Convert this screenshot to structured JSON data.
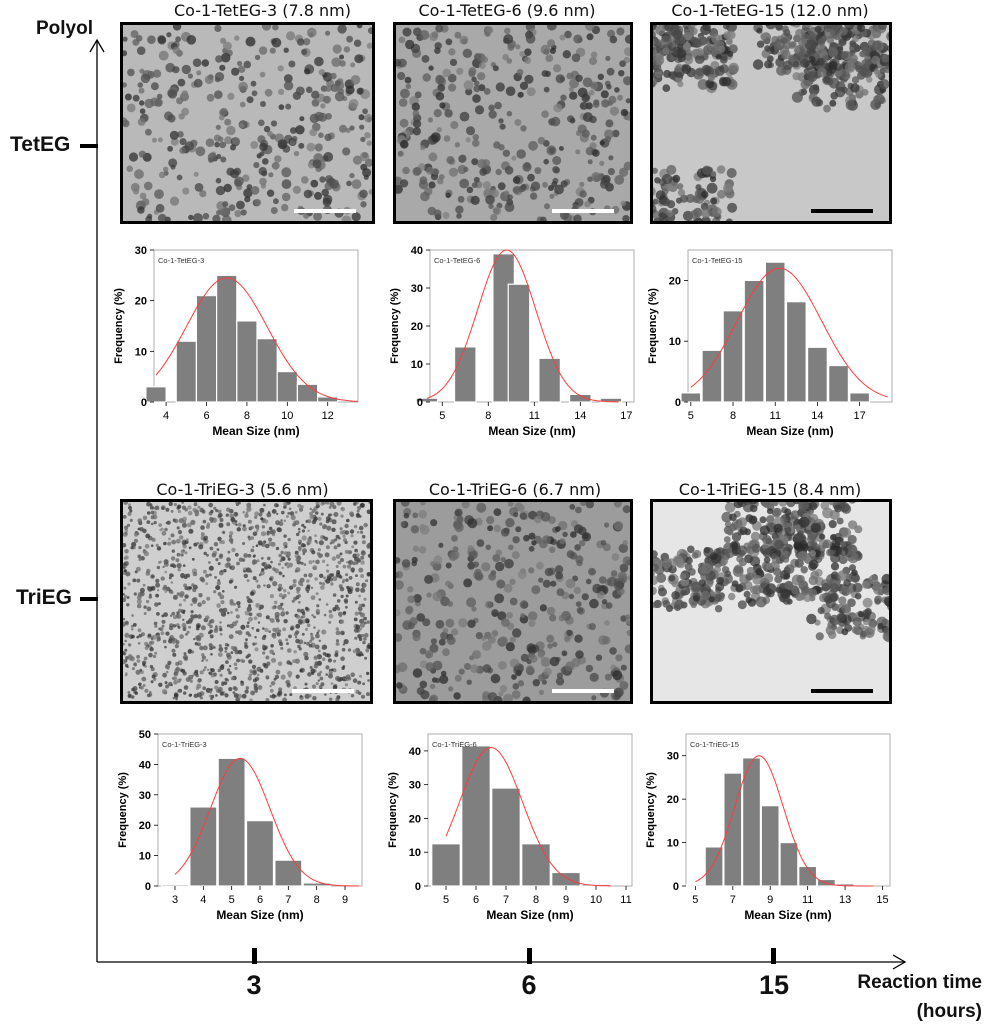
{
  "axes": {
    "y_label": "Polyol",
    "x_label_line1": "Reaction time",
    "x_label_line2": "(hours)",
    "rows": [
      "TetEG",
      "TriEG"
    ],
    "columns": [
      "3",
      "6",
      "15"
    ]
  },
  "captions": {
    "tet": [
      "Co-1-TetEG-3 (7.8 nm)",
      "Co-1-TetEG-6 (9.6 nm)",
      "Co-1-TetEG-15 (12.0 nm)"
    ],
    "tri": [
      "Co-1-TriEG-3 (5.6 nm)",
      "Co-1-TriEG-6 (6.7 nm)",
      "Co-1-TriEG-15 (8.4 nm)"
    ]
  },
  "tem_images": [
    {
      "style": "tet-3",
      "bg": "#b9b9b9",
      "density": "medium",
      "scalebar_color": "#ffffff"
    },
    {
      "style": "tet-6",
      "bg": "#a9a9a9",
      "density": "medium",
      "scalebar_color": "#ffffff"
    },
    {
      "style": "tet-15",
      "bg": "#c8c8c8",
      "density": "clustered",
      "scalebar_color": "#000000"
    },
    {
      "style": "tri-3",
      "bg": "#cfcfcf",
      "density": "dense",
      "scalebar_color": "#ffffff"
    },
    {
      "style": "tri-6",
      "bg": "#9c9c9c",
      "density": "medium",
      "scalebar_color": "#ffffff"
    },
    {
      "style": "tri-15",
      "bg": "#e6e6e6",
      "density": "clustered",
      "scalebar_color": "#000000"
    }
  ],
  "colors": {
    "bar": "#7f7f7f",
    "fit": "#ff3b3b",
    "frame": "#000000"
  },
  "chart_data": [
    {
      "type": "bar",
      "title": "Co-1-TetEG-3",
      "xlabel": "Mean Size (nm)",
      "ylabel": "Frequency (%)",
      "x": [
        3.5,
        5,
        6,
        7,
        8,
        9,
        10,
        11,
        12,
        13
      ],
      "values": [
        3,
        12,
        21,
        25,
        16,
        12.5,
        6,
        3.5,
        1,
        0
      ],
      "xlim": [
        3.4,
        13.5
      ],
      "ylim": [
        0,
        30
      ],
      "xticks": [
        "4",
        "6",
        "8",
        "10",
        "12"
      ],
      "xtick_values": [
        4,
        6,
        8,
        10,
        12
      ],
      "yticks": [
        0,
        10,
        20,
        30
      ],
      "bin_width": 1,
      "fit_mean": 7,
      "fit_sd": 2,
      "fit_peak": 24.5
    },
    {
      "type": "bar",
      "title": "Co-1-TetEG-6",
      "xlabel": "Mean Size (nm)",
      "ylabel": "Frequency (%)",
      "x": [
        4,
        6.5,
        9,
        10,
        12,
        14,
        16
      ],
      "values": [
        1,
        14.5,
        39,
        31,
        11.5,
        2,
        1
      ],
      "xlim": [
        4.2,
        17.5
      ],
      "ylim": [
        0,
        40
      ],
      "xticks": [
        "5",
        "8",
        "11",
        "14",
        "17"
      ],
      "xtick_values": [
        5,
        8,
        11,
        14,
        17
      ],
      "yticks": [
        0,
        10,
        20,
        30,
        40
      ],
      "bin_width": 1.4,
      "fit_mean": 9.2,
      "fit_sd": 1.9,
      "fit_peak": 40
    },
    {
      "type": "bar",
      "title": "Co-1-TetEG-15",
      "xlabel": "Mean Size (nm)",
      "ylabel": "Frequency (%)",
      "x": [
        5,
        6.5,
        8,
        9.5,
        11,
        12.5,
        14,
        15.5,
        17,
        18.5
      ],
      "values": [
        1.5,
        8.5,
        15,
        20,
        23,
        16.5,
        9,
        6,
        1.5,
        0
      ],
      "xlim": [
        4.8,
        19.3
      ],
      "ylim": [
        0,
        25
      ],
      "xticks": [
        "5",
        "8",
        "11",
        "14",
        "17"
      ],
      "xtick_values": [
        5,
        8,
        11,
        14,
        17
      ],
      "yticks": [
        0,
        10,
        20
      ],
      "bin_width": 1.4,
      "fit_mean": 11.3,
      "fit_sd": 3,
      "fit_peak": 22
    },
    {
      "type": "bar",
      "title": "Co-1-TriEG-3",
      "xlabel": "Mean Size (nm)",
      "ylabel": "Frequency (%)",
      "x": [
        3,
        4,
        5,
        6,
        7,
        8,
        9
      ],
      "values": [
        0.5,
        26,
        42,
        21.5,
        8.5,
        1,
        0
      ],
      "xlim": [
        2.4,
        9.6
      ],
      "ylim": [
        0,
        50
      ],
      "xticks": [
        "3",
        "4",
        "5",
        "6",
        "7",
        "8",
        "9"
      ],
      "xtick_values": [
        3,
        4,
        5,
        6,
        7,
        8,
        9
      ],
      "yticks": [
        0,
        10,
        20,
        30,
        40,
        50
      ],
      "bin_width": 0.95,
      "fit_mean": 5.3,
      "fit_sd": 1.05,
      "fit_peak": 42
    },
    {
      "type": "bar",
      "title": "Co-1-TriEG-6",
      "xlabel": "Mean Size (nm)",
      "ylabel": "Frequency (%)",
      "x": [
        5,
        6,
        7,
        8,
        9,
        10
      ],
      "values": [
        12.5,
        41.5,
        29,
        12.5,
        4,
        0.5
      ],
      "xlim": [
        4.4,
        11.2
      ],
      "ylim": [
        0,
        45
      ],
      "xticks": [
        "5",
        "6",
        "7",
        "8",
        "9",
        "10",
        "11"
      ],
      "xtick_values": [
        5,
        6,
        7,
        8,
        9,
        10,
        11
      ],
      "yticks": [
        0,
        10,
        20,
        30,
        40
      ],
      "bin_width": 0.95,
      "fit_mean": 6.5,
      "fit_sd": 1.05,
      "fit_peak": 41
    },
    {
      "type": "bar",
      "title": "Co-1-TriEG-15",
      "xlabel": "Mean Size (nm)",
      "ylabel": "Frequency (%)",
      "x": [
        5,
        6,
        7,
        8,
        9,
        10,
        11,
        12,
        13,
        14
      ],
      "values": [
        0.3,
        9,
        26,
        29.5,
        18.5,
        10,
        4.5,
        1.5,
        0.5,
        0
      ],
      "xlim": [
        4.5,
        15.4
      ],
      "ylim": [
        0,
        35
      ],
      "xticks": [
        "5",
        "7",
        "9",
        "11",
        "13",
        "15"
      ],
      "xtick_values": [
        5,
        7,
        9,
        11,
        13,
        15
      ],
      "yticks": [
        0,
        10,
        20,
        30
      ],
      "bin_width": 0.95,
      "fit_mean": 8.4,
      "fit_sd": 1.3,
      "fit_peak": 30
    }
  ]
}
